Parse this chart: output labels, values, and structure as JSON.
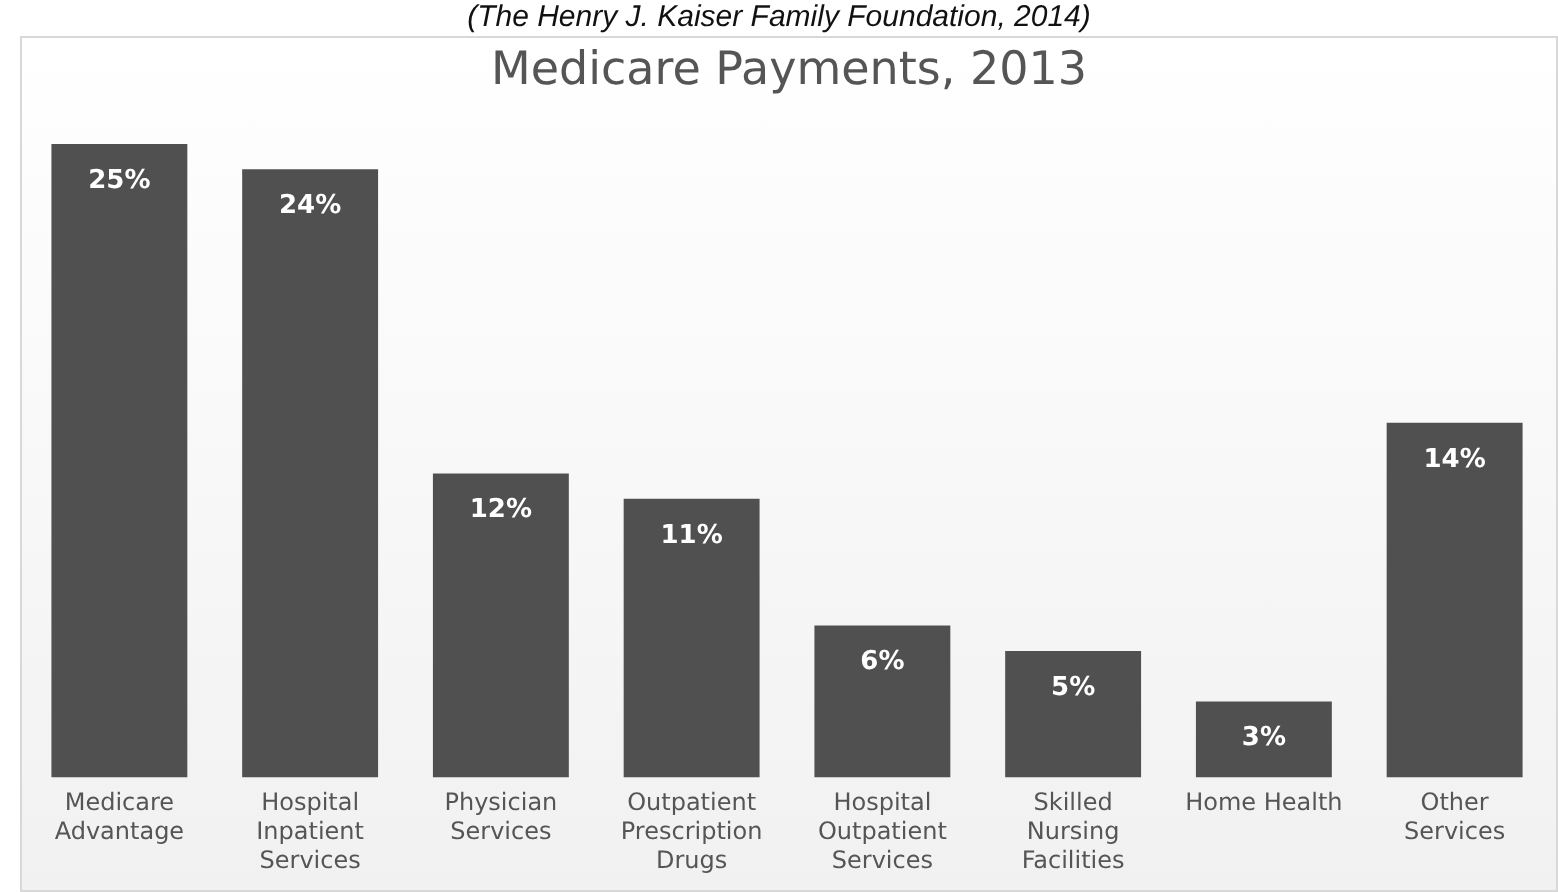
{
  "chart_data": {
    "type": "bar",
    "title": "Medicare Payments, 2013",
    "annotations": [
      "(The Henry J. Kaiser Family Foundation, 2014)"
    ],
    "categories": [
      "Medicare Advantage",
      "Hospital Inpatient Services",
      "Physician Services",
      "Outpatient Prescription Drugs",
      "Hospital Outpatient Services",
      "Skilled Nursing Facilities",
      "Home Health",
      "Other Services"
    ],
    "values": [
      25,
      24,
      12,
      11,
      6,
      5,
      3,
      14
    ],
    "value_labels": [
      "25%",
      "24%",
      "12%",
      "11%",
      "6%",
      "5%",
      "3%",
      "14%"
    ],
    "color": "#505050",
    "grid": false,
    "legend": false
  }
}
